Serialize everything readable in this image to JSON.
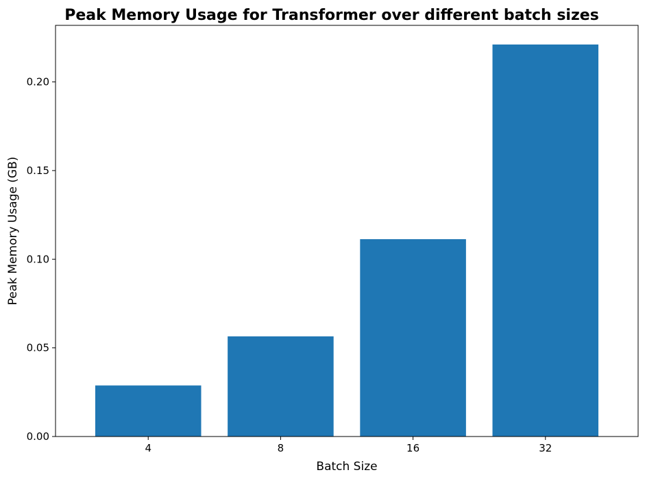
{
  "chart_data": {
    "type": "bar",
    "title": "Peak Memory Usage for Transformer over different batch sizes",
    "xlabel": "Batch Size",
    "ylabel": "Peak Memory Usage (GB)",
    "categories": [
      "4",
      "8",
      "16",
      "32"
    ],
    "values": [
      0.0288,
      0.0565,
      0.1113,
      0.2211
    ],
    "ylim": [
      0,
      0.2319
    ],
    "yticks": [
      0.0,
      0.05,
      0.1,
      0.15,
      0.2
    ],
    "ytick_labels": [
      "0.00",
      "0.05",
      "0.10",
      "0.15",
      "0.20"
    ],
    "grid": false,
    "legend": "none",
    "bar_color": "#1f77b4"
  }
}
